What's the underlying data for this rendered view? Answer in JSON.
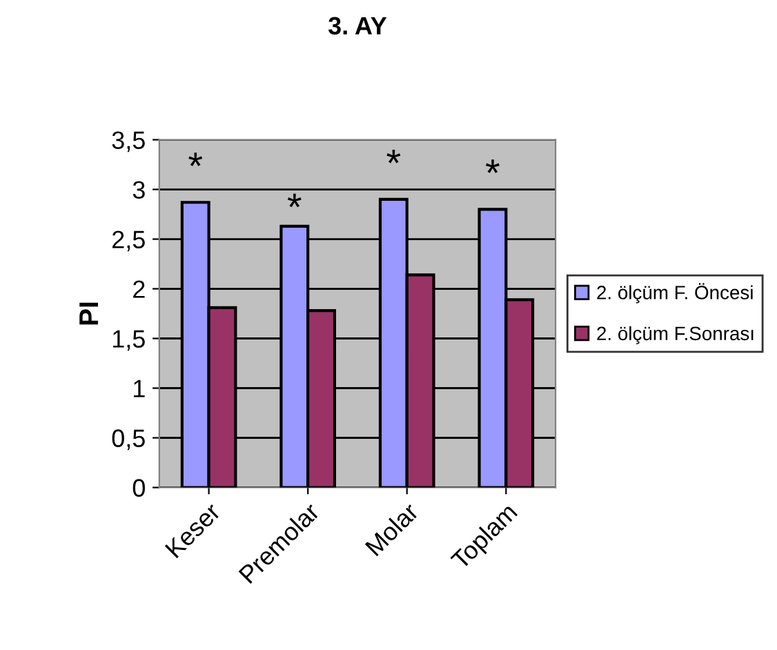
{
  "chart_data": {
    "type": "bar",
    "title": "3. AY",
    "ylabel": "PI",
    "categories": [
      "Keser",
      "Premolar",
      "Molar",
      "Toplam"
    ],
    "series": [
      {
        "name": "2. ölçüm F. Öncesi",
        "color": "#9999ff",
        "values": [
          2.87,
          2.63,
          2.9,
          2.8
        ]
      },
      {
        "name": "2. ölçüm F.Sonrası",
        "color": "#993366",
        "values": [
          1.81,
          1.78,
          2.14,
          1.89
        ]
      }
    ],
    "ylim": [
      0,
      3.5
    ],
    "yticks": [
      0,
      {
        "value": 0.5,
        "label": "0,5"
      },
      1,
      {
        "value": 1.5,
        "label": "1,5"
      },
      2,
      {
        "value": 2.5,
        "label": "2,5"
      },
      3,
      {
        "value": 3.5,
        "label": "3,5"
      }
    ],
    "grid": "y",
    "legend": "right",
    "annotations": [
      "*",
      "*",
      "*",
      "*"
    ]
  }
}
